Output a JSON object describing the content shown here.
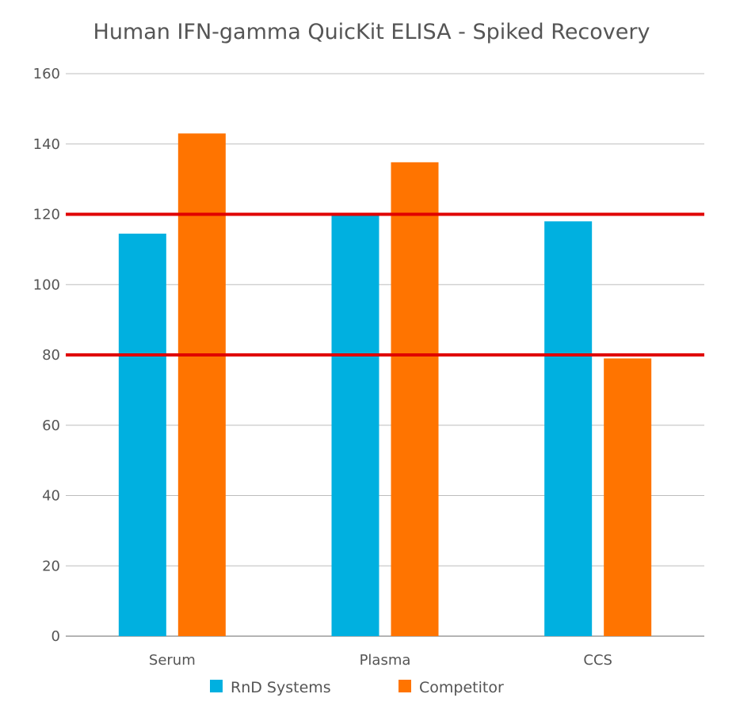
{
  "chart_data": {
    "type": "bar",
    "title": "Human IFN-gamma QuicKit ELISA - Spiked Recovery",
    "xlabel": "",
    "ylabel": "",
    "ylim": [
      0,
      160
    ],
    "yticks": [
      0,
      20,
      40,
      60,
      80,
      100,
      120,
      140,
      160
    ],
    "grid": true,
    "legend": "bottom",
    "categories": [
      "Serum",
      "Plasma",
      "CCS"
    ],
    "series": [
      {
        "name": "RnD Systems",
        "color": "#00b0e0",
        "values": [
          114.5,
          120,
          118
        ]
      },
      {
        "name": "Competitor",
        "color": "#ff7400",
        "values": [
          143,
          134.8,
          79
        ]
      }
    ],
    "reference_lines": [
      {
        "value": 120,
        "color": "#e00000"
      },
      {
        "value": 80,
        "color": "#e00000"
      }
    ]
  }
}
